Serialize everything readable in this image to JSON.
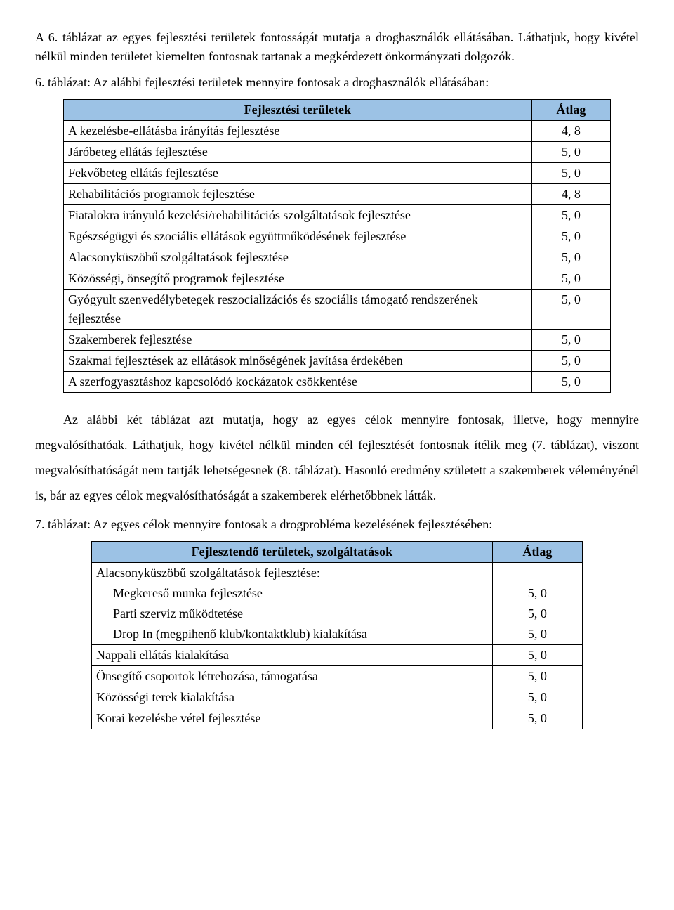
{
  "para1": "A 6. táblázat az egyes fejlesztési területek fontosságát mutatja a droghasználók ellátásában. Láthatjuk, hogy kivétel nélkül minden területet kiemelten fontosnak tartanak a megkérdezett önkormányzati dolgozók.",
  "table6_caption": "6. táblázat: Az alábbi fejlesztési területek mennyire fontosak a droghasználók ellátásában:",
  "table6": {
    "header_col1": "Fejlesztési területek",
    "header_col2": "Átlag",
    "header_bg": "#9cc2e5",
    "rows": [
      {
        "label": "A kezelésbe-ellátásba irányítás fejlesztése",
        "value": "4, 8"
      },
      {
        "label": "Járóbeteg ellátás fejlesztése",
        "value": "5, 0"
      },
      {
        "label": "Fekvőbeteg ellátás fejlesztése",
        "value": "5, 0"
      },
      {
        "label": "Rehabilitációs programok fejlesztése",
        "value": "4, 8"
      },
      {
        "label": "Fiatalokra irányuló kezelési/rehabilitációs szolgáltatások fejlesztése",
        "value": "5, 0"
      },
      {
        "label": "Egészségügyi és szociális ellátások együttműködésének fejlesztése",
        "value": "5, 0"
      },
      {
        "label": "Alacsonyküszöbű szolgáltatások fejlesztése",
        "value": "5, 0"
      },
      {
        "label": "Közösségi, önsegítő programok fejlesztése",
        "value": "5, 0"
      },
      {
        "label": "Gyógyult szenvedélybetegek reszocializációs és szociális támogató rendszerének fejlesztése",
        "value": "5, 0"
      },
      {
        "label": "Szakemberek fejlesztése",
        "value": "5, 0"
      },
      {
        "label": "Szakmai fejlesztések az ellátások minőségének javítása érdekében",
        "value": "5, 0"
      },
      {
        "label": "A szerfogyasztáshoz kapcsolódó kockázatok csökkentése",
        "value": "5, 0"
      }
    ]
  },
  "para2": "Az alábbi két táblázat azt mutatja, hogy az egyes célok mennyire fontosak, illetve, hogy mennyire megvalósíthatóak. Láthatjuk, hogy kivétel nélkül minden cél fejlesztését fontosnak ítélik meg (7. táblázat), viszont megvalósíthatóságát nem tartják lehetségesnek (8. táblázat). Hasonló eredmény született a szakemberek véleményénél is, bár az egyes célok megvalósíthatóságát a szakemberek elérhetőbbnek látták.",
  "table7_caption": "7. táblázat: Az egyes célok mennyire fontosak a drogprobléma kezelésének fejlesztésében:",
  "table7": {
    "header_col1": "Fejlesztendő területek, szolgáltatások",
    "header_col2": "Átlag",
    "header_bg": "#9cc2e5",
    "group_label": "Alacsonyküszöbű szolgáltatások fejlesztése:",
    "group_rows": [
      {
        "label": "Megkereső munka fejlesztése",
        "value": "5, 0"
      },
      {
        "label": "Parti szerviz működtetése",
        "value": "5, 0"
      },
      {
        "label": "Drop In (megpihenő klub/kontaktklub) kialakítása",
        "value": "5, 0"
      }
    ],
    "rows": [
      {
        "label": "Nappali ellátás kialakítása",
        "value": "5, 0"
      },
      {
        "label": "Önsegítő csoportok létrehozása, támogatása",
        "value": "5, 0"
      },
      {
        "label": "Közösségi terek kialakítása",
        "value": "5, 0"
      },
      {
        "label": "Korai kezelésbe vétel fejlesztése",
        "value": "5, 0"
      }
    ]
  }
}
